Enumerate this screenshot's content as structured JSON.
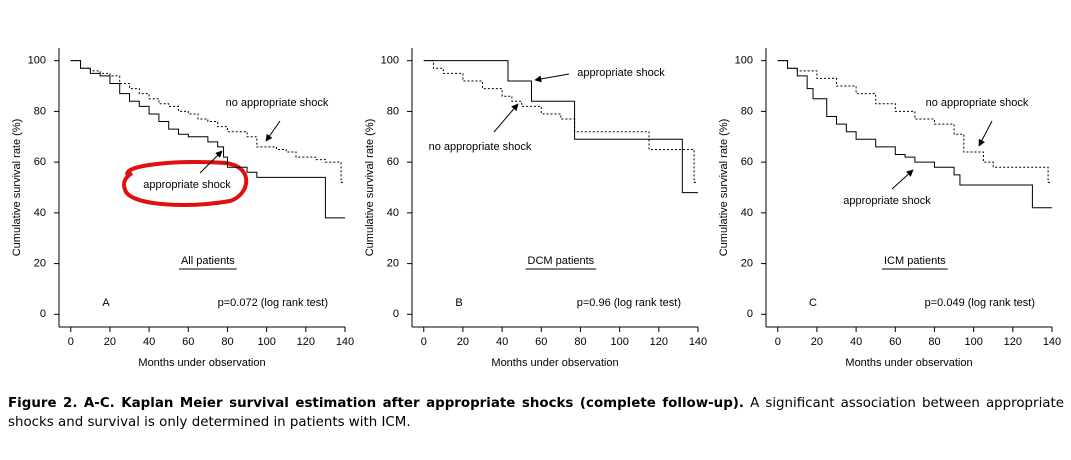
{
  "chart_data": [
    {
      "type": "step",
      "xlabel": "Months under observation",
      "ylabel": "Cumulative survival rate (%)",
      "subtitle": "All patients",
      "panel_label": "A",
      "note": "p=0.072 (log rank test)",
      "xlim": [
        -6,
        140
      ],
      "ylim": [
        -5,
        105
      ],
      "xticks": [
        0,
        20,
        40,
        60,
        80,
        100,
        120,
        140
      ],
      "yticks": [
        0,
        20,
        40,
        60,
        80,
        100
      ],
      "series": [
        {
          "name": "no appropriate shock",
          "color": "#000000",
          "dashed": true,
          "x": [
            0,
            5,
            10,
            15,
            20,
            25,
            30,
            35,
            40,
            45,
            50,
            55,
            60,
            65,
            70,
            75,
            80,
            85,
            90,
            95,
            100,
            105,
            110,
            115,
            120,
            125,
            130,
            138,
            140
          ],
          "values": [
            100,
            97,
            96,
            95,
            94,
            91,
            89,
            87,
            85,
            83,
            82,
            80,
            79,
            77,
            76,
            74,
            72,
            72,
            70,
            66,
            66,
            65,
            64,
            62,
            62,
            61,
            60,
            52,
            52
          ]
        },
        {
          "name": "appropriate shock",
          "color": "#000000",
          "dashed": false,
          "x": [
            0,
            5,
            10,
            15,
            20,
            25,
            30,
            35,
            40,
            45,
            50,
            55,
            60,
            70,
            75,
            78,
            80,
            90,
            95,
            128,
            130,
            140
          ],
          "values": [
            100,
            97,
            95,
            94,
            91,
            87,
            84,
            82,
            79,
            76,
            73,
            71,
            70,
            68,
            66,
            62,
            58,
            56,
            54,
            54,
            38,
            38
          ]
        }
      ]
    },
    {
      "type": "step",
      "xlabel": "Months under observation",
      "ylabel": "Cumulative survival rate (%)",
      "subtitle": "DCM patients",
      "panel_label": "B",
      "note": "p=0.96 (log rank test)",
      "xlim": [
        -6,
        140
      ],
      "ylim": [
        -5,
        105
      ],
      "xticks": [
        0,
        20,
        40,
        60,
        80,
        100,
        120,
        140
      ],
      "yticks": [
        0,
        20,
        40,
        60,
        80,
        100
      ],
      "series": [
        {
          "name": "appropriate shock",
          "color": "#000000",
          "dashed": false,
          "x": [
            0,
            43,
            55,
            77,
            132,
            140
          ],
          "values": [
            100,
            92,
            84,
            69,
            48,
            48
          ]
        },
        {
          "name": "no appropriate shock",
          "color": "#000000",
          "dashed": true,
          "x": [
            0,
            5,
            10,
            20,
            30,
            40,
            45,
            50,
            60,
            70,
            77,
            115,
            138,
            140
          ],
          "values": [
            100,
            97,
            95,
            92,
            89,
            86,
            84,
            82,
            79,
            77,
            72,
            65,
            52,
            52
          ]
        }
      ]
    },
    {
      "type": "step",
      "xlabel": "Months under observation",
      "ylabel": "Cumulative survival rate (%)",
      "subtitle": "ICM patients",
      "panel_label": "C",
      "note": "p=0.049 (log rank test)",
      "xlim": [
        -6,
        140
      ],
      "ylim": [
        -5,
        105
      ],
      "xticks": [
        0,
        20,
        40,
        60,
        80,
        100,
        120,
        140
      ],
      "yticks": [
        0,
        20,
        40,
        60,
        80,
        100
      ],
      "series": [
        {
          "name": "no appropriate shock",
          "color": "#000000",
          "dashed": true,
          "x": [
            0,
            5,
            10,
            20,
            30,
            40,
            50,
            60,
            70,
            80,
            90,
            95,
            105,
            110,
            138,
            140
          ],
          "values": [
            100,
            97,
            96,
            93,
            90,
            87,
            83,
            80,
            77,
            75,
            71,
            64,
            60,
            58,
            52,
            52
          ]
        },
        {
          "name": "appropriate shock",
          "color": "#000000",
          "dashed": false,
          "x": [
            0,
            5,
            10,
            15,
            18,
            25,
            30,
            35,
            40,
            50,
            60,
            65,
            70,
            80,
            90,
            93,
            130,
            140
          ],
          "values": [
            100,
            97,
            94,
            89,
            85,
            78,
            75,
            72,
            69,
            66,
            63,
            62,
            60,
            58,
            55,
            51,
            42,
            42
          ]
        }
      ]
    }
  ],
  "caption": {
    "bold": "Figure 2. A-C. Kaplan Meier survival estimation after appropriate shocks (complete follow-up).",
    "text": "A significant association between appropriate shocks and survival is only determined in patients with ICM."
  }
}
